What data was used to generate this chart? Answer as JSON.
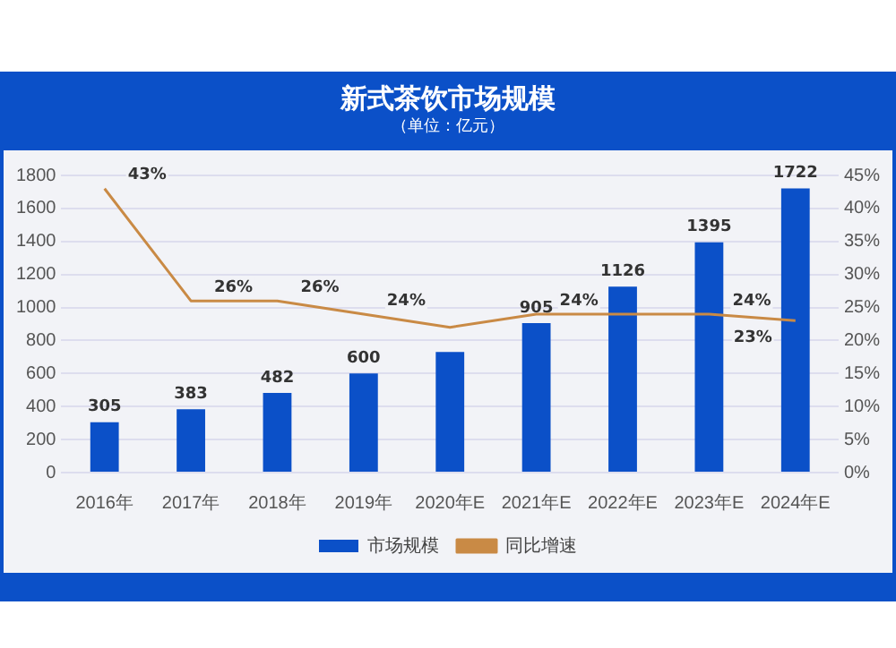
{
  "chart_data": {
    "type": "bar",
    "title": "新式茶饮市场规模",
    "subtitle": "（单位：亿元）",
    "categories": [
      "2016年",
      "2017年",
      "2018年",
      "2019年",
      "2020年E",
      "2021年E",
      "2022年E",
      "2023年E",
      "2024年E"
    ],
    "series": [
      {
        "name": "市场规模",
        "color": "#0b50c8",
        "values": [
          305,
          383,
          482,
          600,
          730,
          905,
          1126,
          1395,
          1722
        ],
        "value_labels": [
          "305",
          "383",
          "482",
          "600",
          null,
          "905",
          "1126",
          "1395",
          "1722"
        ]
      },
      {
        "name": "同比增速",
        "type": "line",
        "axis": "y2",
        "color": "#c98a45",
        "values": [
          43,
          26,
          26,
          24,
          22,
          24,
          24,
          24,
          23
        ],
        "value_labels": [
          "43%",
          "26%",
          "26%",
          "24%",
          null,
          "24%",
          null,
          "24%",
          "23%"
        ]
      }
    ],
    "ylim": [
      0,
      1800
    ],
    "yticks": [
      0,
      200,
      400,
      600,
      800,
      1000,
      1200,
      1400,
      1600,
      1800
    ],
    "y2lim": [
      0,
      45
    ],
    "y2ticks": [
      {
        "value": 0,
        "label": "0%"
      },
      {
        "value": 5,
        "label": "5%"
      },
      {
        "value": 10,
        "label": "10%"
      },
      {
        "value": 15,
        "label": "15%"
      },
      {
        "value": 20,
        "label": "20%"
      },
      {
        "value": 25,
        "label": "25%"
      },
      {
        "value": 30,
        "label": "30%"
      },
      {
        "value": 35,
        "label": "35%"
      },
      {
        "value": 40,
        "label": "40%"
      },
      {
        "value": 45,
        "label": "45%"
      }
    ],
    "grid": "y",
    "legend": "bottom",
    "marker": "none",
    "line_style": "solid"
  }
}
